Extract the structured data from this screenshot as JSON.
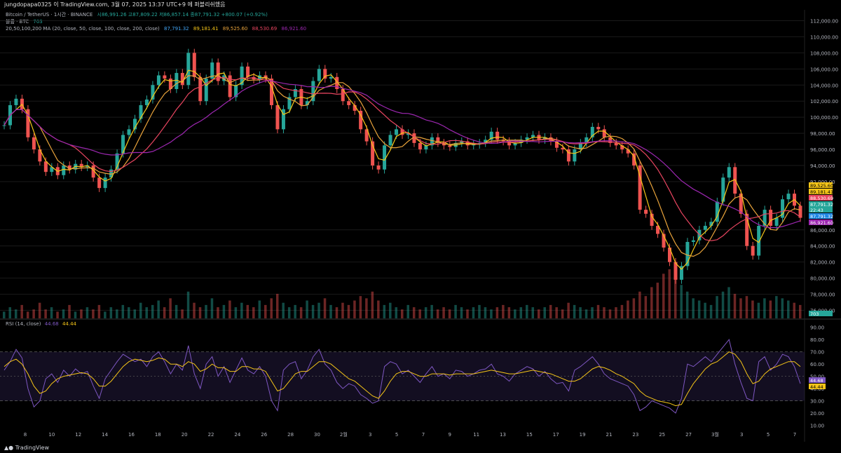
{
  "header": {
    "title": "jungdopapa0325 이 TradingView.com, 3월 07, 2025 13:37 UTC+9 에 퍼블리쉬했음"
  },
  "legend": {
    "symbol": "Bitcoin / TetherUS · 1시간 · BINANCE",
    "ohlc": "시86,991.26  고87,809.22  저86,857.14  종87,791.32  +800.07 (+0.92%)",
    "volume_label": "볼륨 · BTC",
    "volume_value": "703",
    "ma_label": "20,50,100,200 MA (20, close, 50, close, 100, close, 200, close)",
    "ma_values": [
      "87,791.32",
      "89,181.41",
      "89,525.60",
      "88,530.69",
      "86,921.60"
    ]
  },
  "rsi_legend": {
    "label": "RSI (14, close)",
    "values": [
      "44.68",
      "44.44"
    ]
  },
  "footer": {
    "brand": "TradingView"
  },
  "colors": {
    "bg": "#000000",
    "up": "#26a69a",
    "down": "#ef5350",
    "ma20": "#f5c518",
    "ma50": "#e8a33b",
    "ma100": "#e94560",
    "ma200": "#9c27b0",
    "rsi": "#7e57c2",
    "rsi_ma": "#f5c518",
    "grid": "#1a1a1a",
    "axis_text": "#b2b5be"
  },
  "price_axis": [
    "112,000.00",
    "110,000.00",
    "108,000.00",
    "106,000.00",
    "104,000.00",
    "102,000.00",
    "100,000.00",
    "98,000.00",
    "96,000.00",
    "94,000.00",
    "92,000.00",
    "86,000.00",
    "84,000.00",
    "82,000.00",
    "80,000.00",
    "78,000.00",
    "76,000.00"
  ],
  "price_tags": [
    {
      "label": "89,525.60",
      "color": "#f5c518",
      "text": "#000"
    },
    {
      "label": "89,181.41",
      "color": "#f5c518",
      "text": "#000"
    },
    {
      "label": "88,530.69",
      "color": "#e94560",
      "text": "#fff"
    },
    {
      "label": "87,791.32",
      "color": "#26a69a",
      "text": "#fff"
    },
    {
      "label": "22:43",
      "color": "#26a69a",
      "text": "#fff"
    },
    {
      "label": "87,791.32",
      "color": "#1e88e5",
      "text": "#fff"
    },
    {
      "label": "86,921.60",
      "color": "#9c27b0",
      "text": "#fff"
    },
    {
      "label": "703",
      "color": "#26a69a",
      "text": "#fff"
    }
  ],
  "rsi_axis": [
    "90.00",
    "80.00",
    "70.00",
    "60.00",
    "50.00",
    "40.00",
    "30.00",
    "20.00",
    "10.00"
  ],
  "rsi_tags": [
    {
      "label": "44.68",
      "color": "#7e57c2",
      "text": "#fff"
    },
    {
      "label": "44.44",
      "color": "#f5c518",
      "text": "#000"
    }
  ],
  "time_axis": [
    "8",
    "10",
    "12",
    "14",
    "16",
    "18",
    "20",
    "22",
    "24",
    "26",
    "28",
    "30",
    "2월",
    "3",
    "5",
    "7",
    "9",
    "11",
    "13",
    "15",
    "17",
    "19",
    "21",
    "23",
    "25",
    "27",
    "3월",
    "3",
    "5",
    "7"
  ],
  "chart_data": {
    "type": "line",
    "title": "Bitcoin / TetherUS · 1시간 · BINANCE",
    "ylim": [
      75000,
      113000
    ],
    "price_path": [
      [
        0,
        99000
      ],
      [
        1,
        101500
      ],
      [
        2,
        102300
      ],
      [
        3,
        101000
      ],
      [
        4,
        97500
      ],
      [
        5,
        96000
      ],
      [
        6,
        94500
      ],
      [
        7,
        93200
      ],
      [
        8,
        93800
      ],
      [
        9,
        92800
      ],
      [
        10,
        94000
      ],
      [
        11,
        93500
      ],
      [
        12,
        94200
      ],
      [
        13,
        93800
      ],
      [
        14,
        94000
      ],
      [
        15,
        92500
      ],
      [
        16,
        91200
      ],
      [
        17,
        92500
      ],
      [
        18,
        93500
      ],
      [
        19,
        95500
      ],
      [
        20,
        97800
      ],
      [
        21,
        98500
      ],
      [
        22,
        99800
      ],
      [
        23,
        101500
      ],
      [
        24,
        102200
      ],
      [
        25,
        104000
      ],
      [
        26,
        105200
      ],
      [
        27,
        104800
      ],
      [
        28,
        103500
      ],
      [
        29,
        105500
      ],
      [
        30,
        104000
      ],
      [
        31,
        108000
      ],
      [
        32,
        105000
      ],
      [
        33,
        102000
      ],
      [
        34,
        104800
      ],
      [
        35,
        106800
      ],
      [
        36,
        104500
      ],
      [
        37,
        105200
      ],
      [
        38,
        102500
      ],
      [
        39,
        104000
      ],
      [
        40,
        106300
      ],
      [
        41,
        105000
      ],
      [
        42,
        104700
      ],
      [
        43,
        105200
      ],
      [
        44,
        104800
      ],
      [
        45,
        101500
      ],
      [
        46,
        98500
      ],
      [
        47,
        101000
      ],
      [
        48,
        102500
      ],
      [
        49,
        103500
      ],
      [
        50,
        101500
      ],
      [
        51,
        102000
      ],
      [
        52,
        104500
      ],
      [
        53,
        106000
      ],
      [
        54,
        104800
      ],
      [
        55,
        105000
      ],
      [
        56,
        103500
      ],
      [
        57,
        102000
      ],
      [
        58,
        101500
      ],
      [
        59,
        100800
      ],
      [
        60,
        98500
      ],
      [
        61,
        97000
      ],
      [
        62,
        94000
      ],
      [
        63,
        93500
      ],
      [
        64,
        96500
      ],
      [
        65,
        97800
      ],
      [
        66,
        98500
      ],
      [
        67,
        97800
      ],
      [
        68,
        98000
      ],
      [
        69,
        96800
      ],
      [
        70,
        96000
      ],
      [
        71,
        96500
      ],
      [
        72,
        97500
      ],
      [
        73,
        96800
      ],
      [
        74,
        96500
      ],
      [
        75,
        96300
      ],
      [
        76,
        96800
      ],
      [
        77,
        97000
      ],
      [
        78,
        96500
      ],
      [
        79,
        96600
      ],
      [
        80,
        96800
      ],
      [
        81,
        97200
      ],
      [
        82,
        98200
      ],
      [
        83,
        97200
      ],
      [
        84,
        97000
      ],
      [
        85,
        96500
      ],
      [
        86,
        96800
      ],
      [
        87,
        97200
      ],
      [
        88,
        97500
      ],
      [
        89,
        97800
      ],
      [
        90,
        97200
      ],
      [
        91,
        97500
      ],
      [
        92,
        97000
      ],
      [
        93,
        96200
      ],
      [
        94,
        96000
      ],
      [
        95,
        94500
      ],
      [
        96,
        96000
      ],
      [
        97,
        96800
      ],
      [
        98,
        97500
      ],
      [
        99,
        98800
      ],
      [
        100,
        98500
      ],
      [
        101,
        97500
      ],
      [
        102,
        96800
      ],
      [
        103,
        96500
      ],
      [
        104,
        96000
      ],
      [
        105,
        95500
      ],
      [
        106,
        94000
      ],
      [
        107,
        88500
      ],
      [
        108,
        88000
      ],
      [
        109,
        86500
      ],
      [
        110,
        85500
      ],
      [
        111,
        83800
      ],
      [
        112,
        82000
      ],
      [
        113,
        79800
      ],
      [
        114,
        81500
      ],
      [
        115,
        84500
      ],
      [
        116,
        84700
      ],
      [
        117,
        86000
      ],
      [
        118,
        86500
      ],
      [
        119,
        87000
      ],
      [
        120,
        89500
      ],
      [
        121,
        92500
      ],
      [
        122,
        93800
      ],
      [
        123,
        90500
      ],
      [
        124,
        88000
      ],
      [
        125,
        84000
      ],
      [
        126,
        82800
      ],
      [
        127,
        86500
      ],
      [
        128,
        88500
      ],
      [
        129,
        86500
      ],
      [
        130,
        87500
      ],
      [
        131,
        89800
      ],
      [
        132,
        90500
      ],
      [
        133,
        89000
      ],
      [
        134,
        87500
      ]
    ],
    "volume": [
      3,
      5,
      4,
      6,
      3,
      4,
      7,
      4,
      5,
      3,
      4,
      6,
      3,
      4,
      5,
      4,
      6,
      3,
      5,
      4,
      6,
      5,
      4,
      7,
      5,
      6,
      8,
      5,
      9,
      6,
      4,
      12,
      7,
      5,
      6,
      9,
      5,
      6,
      8,
      5,
      7,
      6,
      5,
      8,
      6,
      9,
      11,
      7,
      5,
      6,
      5,
      8,
      6,
      7,
      9,
      6,
      5,
      7,
      6,
      8,
      10,
      9,
      12,
      8,
      6,
      7,
      5,
      4,
      6,
      5,
      4,
      5,
      6,
      4,
      5,
      4,
      6,
      5,
      4,
      5,
      6,
      5,
      4,
      5,
      6,
      5,
      4,
      5,
      6,
      5,
      4,
      5,
      6,
      5,
      4,
      7,
      6,
      5,
      4,
      5,
      6,
      5,
      4,
      5,
      6,
      8,
      9,
      12,
      10,
      14,
      16,
      20,
      22,
      18,
      15,
      12,
      9,
      8,
      7,
      6,
      10,
      12,
      14,
      11,
      9,
      10,
      8,
      7,
      9,
      8,
      10,
      9,
      8,
      7,
      6
    ],
    "rsi_ylim": [
      0,
      95
    ],
    "rsi": [
      55,
      62,
      72,
      65,
      40,
      25,
      30,
      48,
      52,
      45,
      55,
      50,
      56,
      52,
      54,
      42,
      32,
      48,
      55,
      62,
      68,
      65,
      62,
      64,
      58,
      66,
      70,
      62,
      52,
      60,
      55,
      75,
      52,
      40,
      60,
      66,
      50,
      58,
      45,
      55,
      65,
      55,
      52,
      58,
      50,
      30,
      22,
      55,
      60,
      62,
      48,
      55,
      66,
      72,
      60,
      55,
      45,
      40,
      44,
      42,
      35,
      32,
      28,
      30,
      58,
      62,
      60,
      52,
      55,
      50,
      45,
      52,
      58,
      50,
      52,
      48,
      55,
      54,
      50,
      52,
      55,
      56,
      60,
      52,
      50,
      46,
      52,
      55,
      58,
      56,
      50,
      54,
      48,
      44,
      45,
      38,
      55,
      58,
      62,
      66,
      60,
      52,
      48,
      46,
      44,
      42,
      35,
      22,
      25,
      30,
      28,
      26,
      24,
      20,
      32,
      60,
      58,
      62,
      66,
      62,
      68,
      74,
      80,
      60,
      45,
      32,
      30,
      62,
      66,
      55,
      60,
      68,
      66,
      58,
      44
    ],
    "rsi_ma": [
      58,
      62,
      64,
      60,
      52,
      42,
      36,
      38,
      44,
      48,
      50,
      51,
      52,
      53,
      52,
      48,
      42,
      42,
      46,
      52,
      58,
      62,
      64,
      63,
      62,
      63,
      65,
      64,
      60,
      60,
      58,
      62,
      60,
      54,
      56,
      60,
      57,
      57,
      54,
      54,
      58,
      58,
      56,
      56,
      54,
      46,
      38,
      40,
      46,
      52,
      54,
      54,
      58,
      62,
      62,
      60,
      56,
      52,
      48,
      46,
      42,
      38,
      34,
      32,
      38,
      46,
      52,
      54,
      54,
      52,
      50,
      50,
      52,
      52,
      52,
      51,
      52,
      52,
      52,
      52,
      53,
      54,
      55,
      54,
      53,
      52,
      52,
      53,
      54,
      55,
      54,
      53,
      52,
      50,
      48,
      46,
      46,
      48,
      52,
      56,
      58,
      57,
      55,
      52,
      50,
      47,
      44,
      38,
      34,
      32,
      30,
      29,
      28,
      26,
      27,
      36,
      44,
      50,
      56,
      60,
      62,
      66,
      70,
      68,
      62,
      52,
      44,
      46,
      52,
      56,
      58,
      60,
      62,
      62,
      58
    ]
  }
}
